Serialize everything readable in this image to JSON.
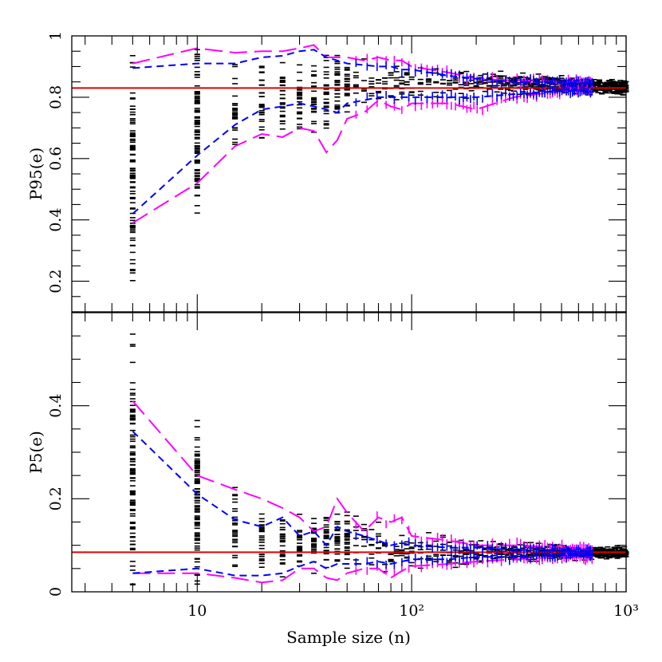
{
  "chart_data": [
    {
      "type": "scatter",
      "panel": "top",
      "ylabel": "P95(e)",
      "xlabel": "",
      "x_scale": "log",
      "xlim": [
        2.6,
        1000
      ],
      "ylim": [
        0.1,
        1.0
      ],
      "y_ticks": [
        "0.2",
        "0.4",
        "0.6",
        "0.8",
        "1"
      ],
      "reference_value": 0.83,
      "reference_color": "#e00000",
      "simulation_spread": {
        "x": [
          5,
          10,
          15,
          20,
          25,
          30,
          35,
          40,
          45,
          50,
          60,
          70,
          80,
          90,
          100,
          150,
          200,
          300,
          500,
          700,
          1000
        ],
        "min": [
          0.2,
          0.38,
          0.56,
          0.6,
          0.62,
          0.61,
          0.63,
          0.64,
          0.68,
          0.72,
          0.75,
          0.76,
          0.77,
          0.77,
          0.77,
          0.78,
          0.79,
          0.8,
          0.8,
          0.8,
          0.8
        ],
        "max": [
          0.95,
          0.98,
          0.98,
          0.98,
          0.98,
          0.98,
          0.97,
          0.96,
          0.96,
          0.95,
          0.94,
          0.94,
          0.93,
          0.92,
          0.92,
          0.91,
          0.9,
          0.89,
          0.88,
          0.87,
          0.86
        ]
      },
      "series": [
        {
          "style": "long-dash",
          "color": "#ff00ff",
          "x": [
            5,
            10,
            15,
            20,
            25,
            30,
            35,
            40,
            45,
            50,
            60,
            70,
            80,
            90,
            100,
            150,
            200,
            300,
            500,
            700
          ],
          "upper": [
            0.91,
            0.96,
            0.945,
            0.95,
            0.95,
            0.96,
            0.97,
            0.93,
            0.93,
            0.93,
            0.92,
            0.93,
            0.92,
            0.92,
            0.9,
            0.88,
            0.86,
            0.855,
            0.85,
            0.85
          ],
          "lower": [
            0.39,
            0.52,
            0.64,
            0.68,
            0.67,
            0.7,
            0.69,
            0.62,
            0.66,
            0.73,
            0.75,
            0.79,
            0.77,
            0.76,
            0.78,
            0.78,
            0.76,
            0.8,
            0.82,
            0.82
          ]
        },
        {
          "style": "short-dash",
          "color": "#0000ff",
          "x": [
            5,
            10,
            15,
            20,
            25,
            30,
            35,
            40,
            45,
            50,
            60,
            70,
            80,
            90,
            100,
            150,
            200,
            300,
            500,
            700
          ],
          "upper": [
            0.895,
            0.91,
            0.91,
            0.93,
            0.935,
            0.95,
            0.955,
            0.93,
            0.92,
            0.91,
            0.905,
            0.9,
            0.9,
            0.89,
            0.89,
            0.87,
            0.86,
            0.85,
            0.85,
            0.845
          ],
          "lower": [
            0.42,
            0.61,
            0.71,
            0.76,
            0.77,
            0.78,
            0.77,
            0.76,
            0.75,
            0.78,
            0.79,
            0.8,
            0.8,
            0.8,
            0.8,
            0.8,
            0.8,
            0.81,
            0.82,
            0.82
          ]
        }
      ]
    },
    {
      "type": "scatter",
      "panel": "bottom",
      "ylabel": "P5(e)",
      "xlabel": "Sample size (n)",
      "x_scale": "log",
      "xlim": [
        2.6,
        1000
      ],
      "ylim": [
        0.0,
        0.6
      ],
      "x_ticks": [
        "10",
        "10²",
        "10³"
      ],
      "y_ticks": [
        "0",
        "0.2",
        "0.4"
      ],
      "reference_value": 0.085,
      "reference_color": "#e00000",
      "simulation_spread": {
        "x": [
          5,
          10,
          15,
          20,
          25,
          30,
          35,
          40,
          45,
          50,
          60,
          70,
          80,
          90,
          100,
          150,
          200,
          300,
          500,
          700,
          1000
        ],
        "min": [
          0.01,
          0.01,
          0.015,
          0.015,
          0.02,
          0.02,
          0.02,
          0.02,
          0.025,
          0.025,
          0.03,
          0.03,
          0.035,
          0.035,
          0.04,
          0.045,
          0.05,
          0.055,
          0.06,
          0.065,
          0.07
        ],
        "max": [
          0.56,
          0.37,
          0.24,
          0.21,
          0.2,
          0.19,
          0.2,
          0.19,
          0.21,
          0.19,
          0.17,
          0.16,
          0.15,
          0.15,
          0.14,
          0.13,
          0.12,
          0.11,
          0.105,
          0.1,
          0.1
        ]
      },
      "series": [
        {
          "style": "long-dash",
          "color": "#ff00ff",
          "x": [
            5,
            10,
            15,
            20,
            25,
            30,
            35,
            40,
            45,
            50,
            60,
            70,
            80,
            90,
            100,
            150,
            200,
            300,
            500,
            700
          ],
          "upper": [
            0.41,
            0.25,
            0.22,
            0.2,
            0.18,
            0.16,
            0.13,
            0.14,
            0.2,
            0.17,
            0.13,
            0.16,
            0.15,
            0.16,
            0.12,
            0.11,
            0.1,
            0.1,
            0.095,
            0.09
          ],
          "lower": [
            0.04,
            0.04,
            0.03,
            0.02,
            0.025,
            0.05,
            0.05,
            0.03,
            0.025,
            0.04,
            0.05,
            0.05,
            0.03,
            0.045,
            0.055,
            0.06,
            0.065,
            0.07,
            0.075,
            0.075
          ]
        },
        {
          "style": "short-dash",
          "color": "#0000ff",
          "x": [
            5,
            10,
            15,
            20,
            25,
            30,
            35,
            40,
            45,
            50,
            60,
            70,
            80,
            90,
            100,
            150,
            200,
            300,
            500,
            700
          ],
          "upper": [
            0.345,
            0.21,
            0.155,
            0.14,
            0.16,
            0.12,
            0.13,
            0.1,
            0.14,
            0.13,
            0.12,
            0.11,
            0.1,
            0.105,
            0.1,
            0.095,
            0.095,
            0.09,
            0.09,
            0.085
          ],
          "lower": [
            0.04,
            0.05,
            0.035,
            0.035,
            0.04,
            0.055,
            0.065,
            0.05,
            0.06,
            0.06,
            0.06,
            0.065,
            0.06,
            0.065,
            0.07,
            0.07,
            0.075,
            0.075,
            0.08,
            0.08
          ]
        }
      ]
    }
  ]
}
